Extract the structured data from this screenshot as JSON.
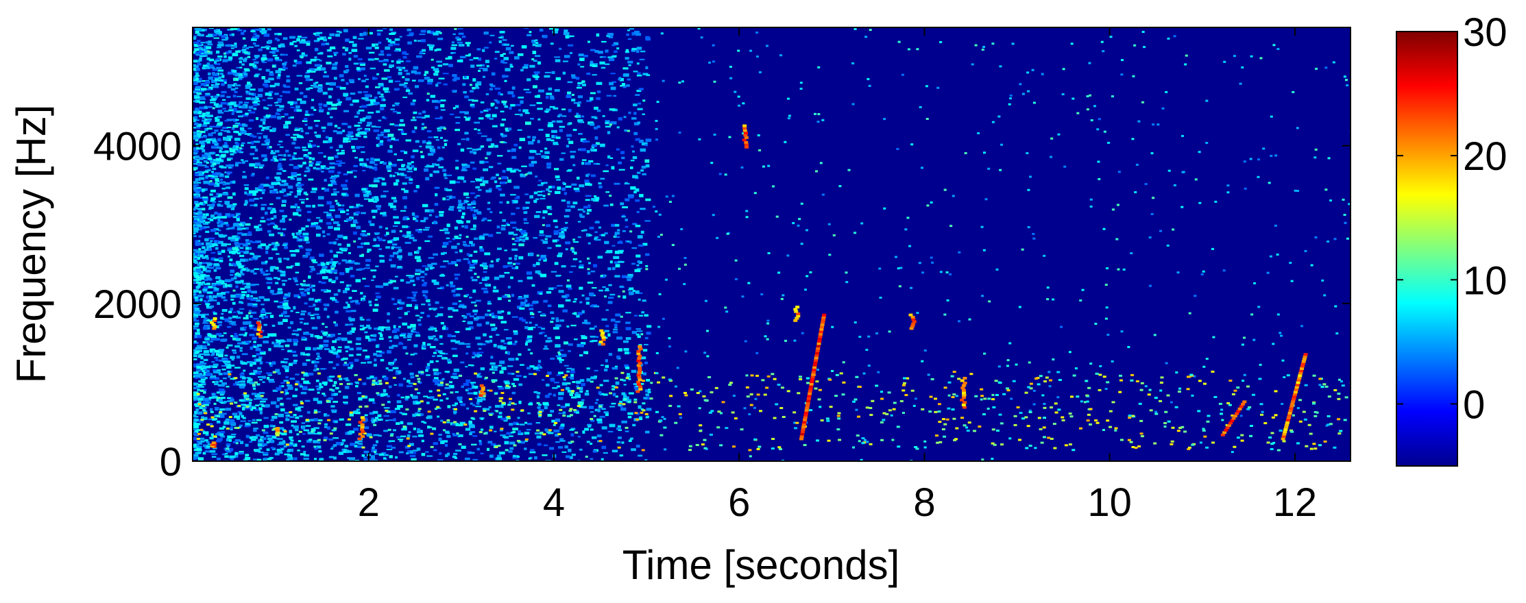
{
  "chart_data": {
    "type": "heatmap",
    "subtype": "spectrogram",
    "title": "",
    "xlabel": "Time [seconds]",
    "ylabel": "Frequency [Hz]",
    "xlim": [
      0.1,
      12.6
    ],
    "ylim": [
      0,
      5500
    ],
    "xticks": [
      2,
      4,
      6,
      8,
      10,
      12
    ],
    "yticks": [
      0,
      2000,
      4000
    ],
    "colorbar": {
      "colormap": "jet",
      "range": [
        -5,
        30
      ],
      "ticks": [
        0,
        10,
        20,
        30
      ]
    },
    "background_level": -5,
    "noise_region": {
      "time_range": [
        0.1,
        5.0
      ],
      "level_range": [
        2,
        9
      ]
    },
    "features": [
      {
        "t": 0.3,
        "f0": 200,
        "f1": 260,
        "level": 26,
        "kind": "band"
      },
      {
        "t": 0.3,
        "f0": 1700,
        "f1": 1850,
        "level": 24,
        "kind": "band"
      },
      {
        "t": 0.8,
        "f0": 1600,
        "f1": 1800,
        "level": 25,
        "kind": "band"
      },
      {
        "t": 1.0,
        "f0": 350,
        "f1": 450,
        "level": 22,
        "kind": "band"
      },
      {
        "t": 1.9,
        "f0": 300,
        "f1": 600,
        "level": 24,
        "kind": "band"
      },
      {
        "t": 3.2,
        "f0": 850,
        "f1": 1000,
        "level": 25,
        "kind": "band"
      },
      {
        "t": 4.5,
        "f0": 1500,
        "f1": 1700,
        "level": 24,
        "kind": "band"
      },
      {
        "t": 4.9,
        "f0": 900,
        "f1": 1500,
        "level": 26,
        "kind": "band"
      },
      {
        "t": 6.05,
        "f0": 4000,
        "f1": 4300,
        "level": 26,
        "kind": "band"
      },
      {
        "t": 6.6,
        "f0": 1800,
        "f1": 2000,
        "level": 25,
        "kind": "band"
      },
      {
        "t": 6.9,
        "f0": 300,
        "f1": 1900,
        "level": 28,
        "kind": "sweep"
      },
      {
        "t": 7.85,
        "f0": 1700,
        "f1": 1900,
        "level": 25,
        "kind": "band"
      },
      {
        "t": 8.4,
        "f0": 700,
        "f1": 1100,
        "level": 24,
        "kind": "band"
      },
      {
        "t": 11.45,
        "f0": 350,
        "f1": 800,
        "level": 27,
        "kind": "sweep"
      },
      {
        "t": 12.1,
        "f0": 300,
        "f1": 1400,
        "level": 25,
        "kind": "sweep"
      }
    ]
  }
}
